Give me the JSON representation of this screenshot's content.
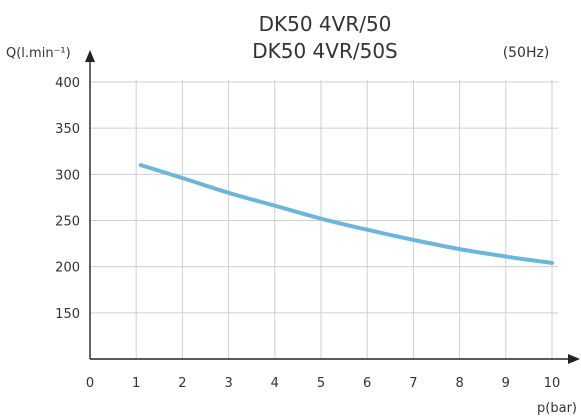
{
  "chart_data": {
    "type": "line",
    "title_line1": "DK50 4VR/50",
    "title_line2": "DK50 4VR/50S",
    "annotation": "(50Hz)",
    "ylabel": "Q(l.min⁻¹)",
    "xlabel": "p(bar)",
    "xlim": [
      0,
      10
    ],
    "ylim": [
      100,
      400
    ],
    "x_ticks": [
      0,
      1,
      2,
      3,
      4,
      5,
      6,
      7,
      8,
      9,
      10
    ],
    "y_ticks": [
      150,
      200,
      250,
      300,
      350,
      400
    ],
    "grid": true,
    "series": [
      {
        "color": "#6cb6dc",
        "points": [
          [
            1.1,
            310
          ],
          [
            2,
            296
          ],
          [
            3,
            280
          ],
          [
            4,
            266
          ],
          [
            5,
            252
          ],
          [
            6,
            240
          ],
          [
            7,
            229
          ],
          [
            8,
            219
          ],
          [
            9,
            211
          ],
          [
            10,
            204
          ]
        ]
      }
    ]
  }
}
